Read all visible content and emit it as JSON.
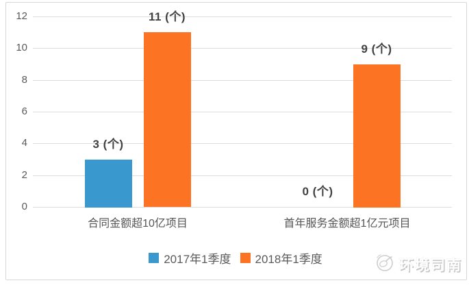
{
  "chart_data": {
    "type": "bar",
    "categories": [
      "合同金额超10亿项目",
      "首年服务金额超1亿元项目"
    ],
    "series": [
      {
        "name": "2017年1季度",
        "color": "#3998CE",
        "values": [
          3,
          0
        ],
        "labels": [
          "3 (个)",
          "0 (个)"
        ]
      },
      {
        "name": "2018年1季度",
        "color": "#FC7423",
        "values": [
          11,
          9
        ],
        "labels": [
          "11 (个)",
          "9 (个)"
        ]
      }
    ],
    "ylim": [
      0,
      12
    ],
    "yticks": [
      0,
      2,
      4,
      6,
      8,
      10,
      12
    ],
    "value_unit": "个",
    "grid": true,
    "legend_position": "bottom",
    "colors": {
      "gridline": "#dcdcdc",
      "frame_border": "#d6d6d6",
      "tick_text": "#595959",
      "data_label_text": "#404040",
      "category_text": "#555555",
      "legend_text": "#595959"
    }
  },
  "watermark": {
    "text": "环境司南",
    "icon": "compass-icon",
    "color": "#c4c4c4"
  }
}
